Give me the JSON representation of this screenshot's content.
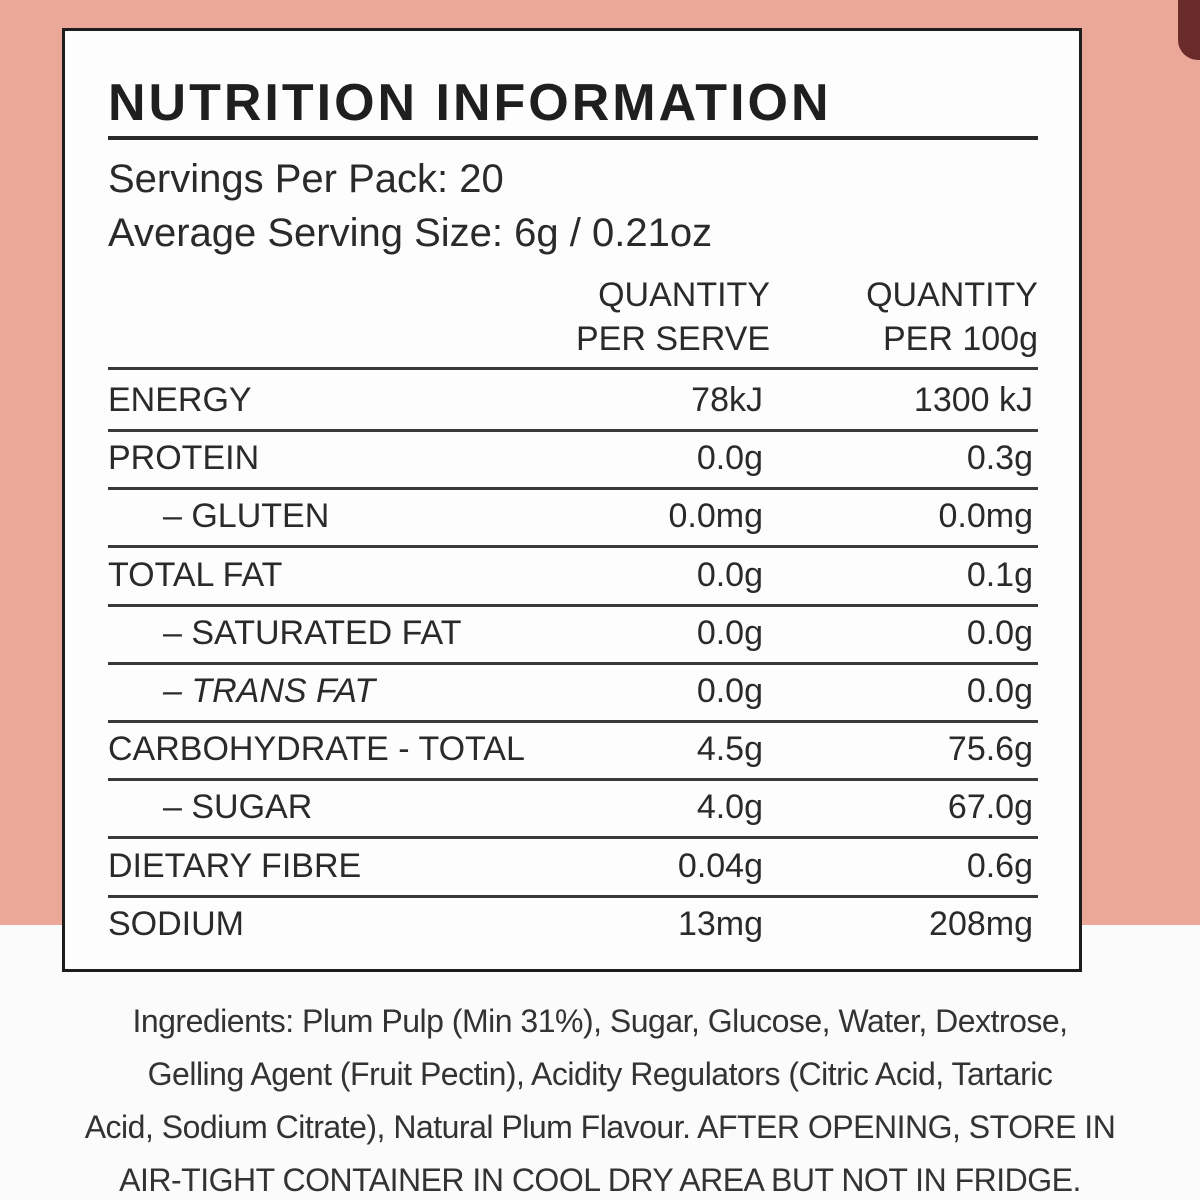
{
  "header": {
    "title": "NUTRITION INFORMATION",
    "servings": "Servings Per Pack: 20",
    "serving_size": "Average Serving Size: 6g / 0.21oz"
  },
  "table": {
    "columns": [
      [
        "QUANTITY",
        "PER SERVE"
      ],
      [
        "QUANTITY",
        "PER 100g"
      ]
    ],
    "rows": [
      [
        "ENERGY",
        "78kJ",
        "1300 kJ"
      ],
      [
        "PROTEIN",
        "0.0g",
        "0.3g"
      ],
      [
        "– GLUTEN",
        "0.0mg",
        "0.0mg"
      ],
      [
        "TOTAL FAT",
        "0.0g",
        "0.1g"
      ],
      [
        "– SATURATED  FAT",
        "0.0g",
        "0.0g"
      ],
      [
        "– TRANS FAT",
        "0.0g",
        "0.0g"
      ],
      [
        "CARBOHYDRATE - TOTAL",
        "4.5g",
        "75.6g"
      ],
      [
        "– SUGAR",
        "4.0g",
        "67.0g"
      ],
      [
        "DIETARY FIBRE",
        "0.04g",
        "0.6g"
      ],
      [
        "SODIUM",
        "13mg",
        "208mg"
      ]
    ]
  },
  "ingredients": [
    "Ingredients: Plum Pulp (Min 31%), Sugar, Glucose, Water, Dextrose,",
    "Gelling Agent (Fruit Pectin), Acidity Regulators (Citric Acid, Tartaric",
    "Acid, Sodium Citrate), Natural Plum Flavour. AFTER OPENING, STORE IN",
    "AIR-TIGHT CONTAINER IN COOL DRY AREA BUT NOT IN FRIDGE."
  ]
}
